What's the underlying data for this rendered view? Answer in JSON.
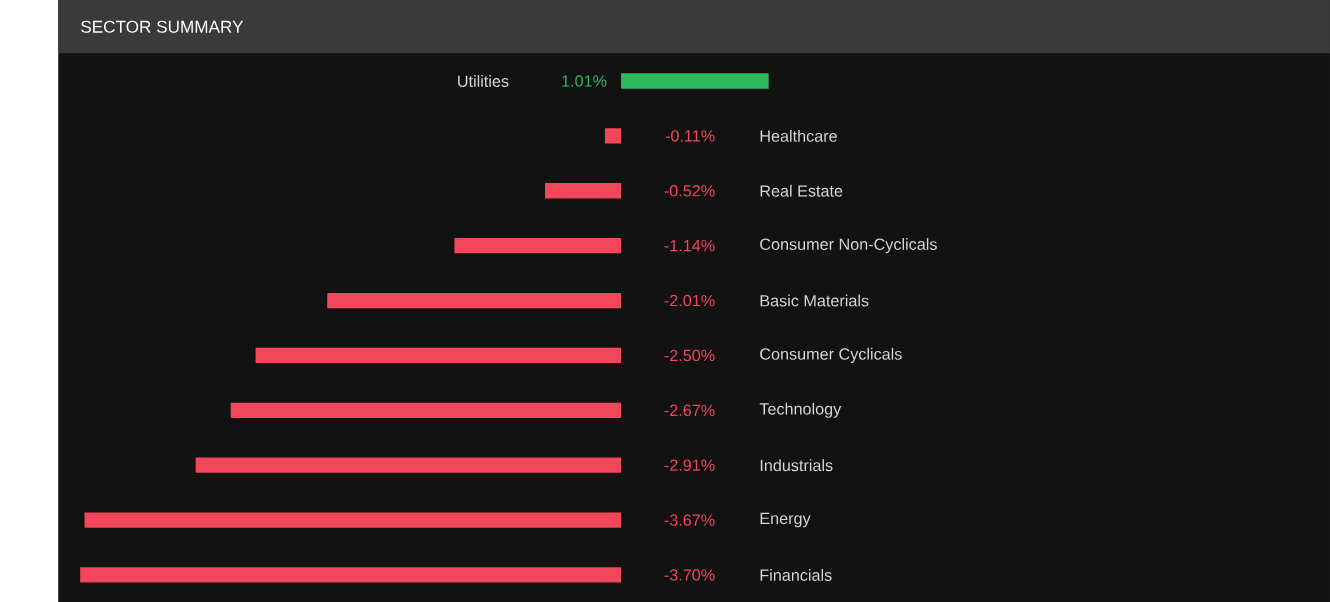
{
  "chart_data": {
    "type": "bar",
    "title": "SECTOR SUMMARY",
    "orientation": "horizontal",
    "categories": [
      "Utilities",
      "Healthcare",
      "Real Estate",
      "Consumer Non-Cyclicals",
      "Basic Materials",
      "Consumer Cyclicals",
      "Technology",
      "Industrials",
      "Energy",
      "Financials"
    ],
    "values": [
      1.01,
      -0.11,
      -0.52,
      -1.14,
      -2.01,
      -2.5,
      -2.67,
      -2.91,
      -3.67,
      -3.7
    ],
    "value_labels": [
      "1.01%",
      "-0.11%",
      "-0.52%",
      "-1.14%",
      "-2.01%",
      "-2.50%",
      "-2.67%",
      "-2.91%",
      "-3.67%",
      "-3.70%"
    ],
    "colors": [
      "#2fb95c",
      "#f2465a",
      "#f2465a",
      "#f2465a",
      "#f2465a",
      "#f2465a",
      "#f2465a",
      "#f2465a",
      "#f2465a",
      "#f2465a"
    ]
  }
}
